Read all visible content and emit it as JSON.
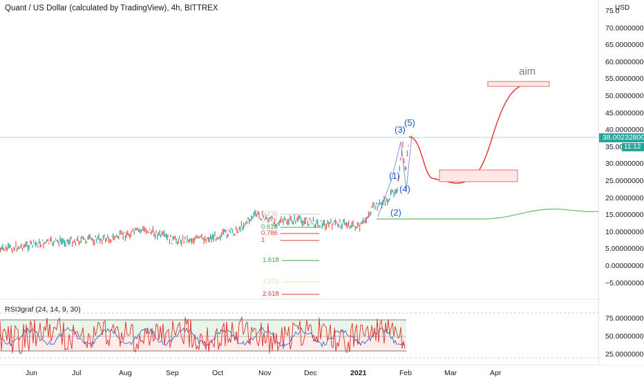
{
  "header": {
    "title": "Quant / US Dollar (calculated by TradingView), 4h, BITTREX"
  },
  "price_axis": {
    "currency": "USD",
    "labels": [
      "75.0",
      "70.00000000",
      "65.00000000",
      "60.00000000",
      "55.00000000",
      "50.00000000",
      "45.00000000",
      "40.00000000",
      "35.00000",
      "30.00000000",
      "25.00000000",
      "20.00000000",
      "15.00000000",
      "10.00000000",
      "5.00000000",
      "0.00000000",
      "−5.00000000"
    ],
    "current_price": "38.00232800",
    "countdown": "11:12"
  },
  "rsi_axis": {
    "labels": [
      "75.00000000",
      "50.00000000",
      "25.00000000"
    ]
  },
  "time_axis": {
    "labels": [
      "Jun",
      "Jul",
      "Aug",
      "Sep",
      "Oct",
      "Nov",
      "Dec",
      "2021",
      "Feb",
      "Mar",
      "Apr"
    ]
  },
  "indicator": {
    "title": "RSI3graf (24, 14, 9, 30)"
  },
  "fib_levels": [
    {
      "label": "0.236",
      "color": "#c9c9c9"
    },
    {
      "label": "0.382",
      "color": "#c9c9c9"
    },
    {
      "label": "0.618",
      "color": "#43a047"
    },
    {
      "label": "0.786",
      "color": "#e53935"
    },
    {
      "label": "1",
      "color": "#e53935"
    },
    {
      "label": "1.618",
      "color": "#43a047"
    },
    {
      "label": "2.272",
      "color": "#f5d5a8"
    },
    {
      "label": "2.618",
      "color": "#e53935"
    }
  ],
  "waves": [
    "(1)",
    "(2)",
    "(3)",
    "(4)",
    "(5)"
  ],
  "annotation": {
    "aim_label": "aim"
  },
  "colors": {
    "up": "#26a69a",
    "down": "#ef5350",
    "projection": "#e53935",
    "support": "#66bb6a",
    "wave": "#1e53c8"
  }
}
